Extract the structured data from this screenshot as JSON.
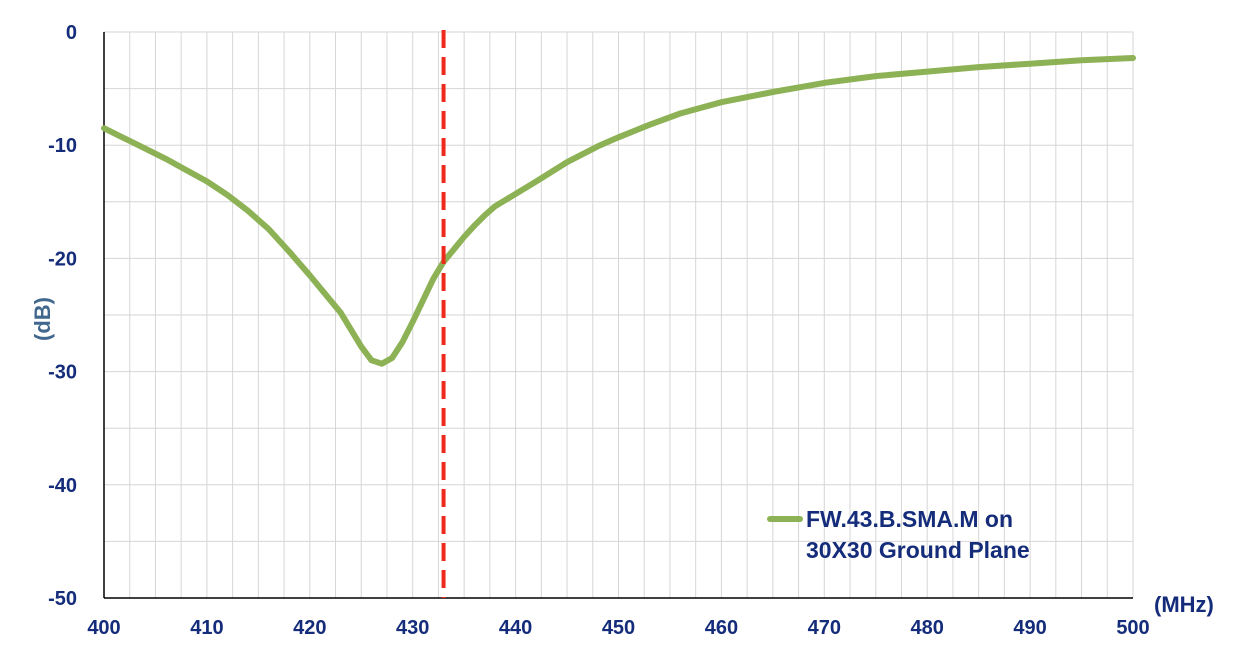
{
  "chart_data": {
    "type": "line",
    "title": "",
    "xlabel": "(MHz)",
    "ylabel": "(dB)",
    "xlim": [
      400,
      500
    ],
    "ylim": [
      -50,
      0
    ],
    "x_ticks": [
      400,
      410,
      420,
      430,
      440,
      450,
      460,
      470,
      480,
      490,
      500
    ],
    "y_ticks": [
      0,
      -10,
      -20,
      -30,
      -40,
      -50
    ],
    "x_minor_step": 2.5,
    "y_minor_step": 5,
    "grid": true,
    "legend": {
      "placement": "bottom-right",
      "entries": [
        "FW.43.B.SMA.M on 30X30 Ground Plane"
      ]
    },
    "series": [
      {
        "name": "FW.43.B.SMA.M on 30X30 Ground Plane",
        "color": "#8DB255",
        "x": [
          400,
          402,
          404,
          406,
          408,
          410,
          412,
          414,
          416,
          418,
          420,
          422,
          423,
          424,
          425,
          426,
          427,
          428,
          429,
          430,
          431,
          432,
          433,
          434,
          435,
          436,
          437,
          438,
          440,
          442,
          445,
          448,
          450,
          453,
          456,
          460,
          465,
          470,
          475,
          480,
          485,
          490,
          495,
          500
        ],
        "y": [
          -8.5,
          -9.4,
          -10.3,
          -11.2,
          -12.2,
          -13.2,
          -14.4,
          -15.8,
          -17.4,
          -19.4,
          -21.5,
          -23.7,
          -24.8,
          -26.3,
          -27.8,
          -29.0,
          -29.3,
          -28.8,
          -27.4,
          -25.6,
          -23.7,
          -21.8,
          -20.3,
          -19.2,
          -18.1,
          -17.1,
          -16.2,
          -15.4,
          -14.3,
          -13.2,
          -11.5,
          -10.1,
          -9.3,
          -8.2,
          -7.2,
          -6.2,
          -5.3,
          -4.5,
          -3.9,
          -3.5,
          -3.1,
          -2.8,
          -2.5,
          -2.3
        ]
      }
    ],
    "marker_line": {
      "x": 433,
      "color": "#EE2A1C",
      "style": "dashed"
    },
    "colors": {
      "tick_labels": "#142C7A",
      "ylabel": "#41678F",
      "grid": "#D6D6D6",
      "axis": "#000000"
    }
  }
}
